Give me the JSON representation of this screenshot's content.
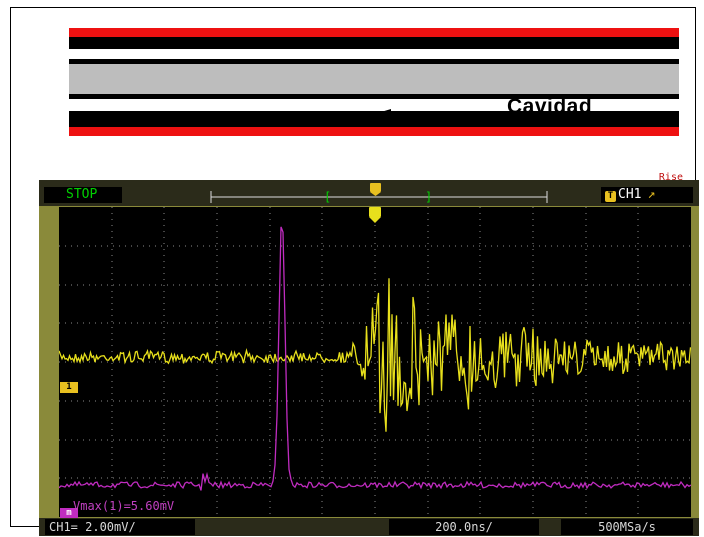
{
  "diagram": {
    "cavity_label": "Cavidad",
    "colors": {
      "red": "#ee1111",
      "black": "#000000",
      "white": "#ffffff",
      "gray": "#bdbdbd"
    }
  },
  "scope": {
    "status": "STOP",
    "trigger": {
      "channel_label": "CH1",
      "rise_label": "Rise",
      "icon": "trigger-t-icon",
      "edge_icon": "rising-edge-icon"
    },
    "ch1_marker": "1",
    "math_marker": "m",
    "measurement": "Vmax(1)=5.60mV",
    "volts_div": "CH1= 2.00mV/",
    "time_div": "200.0ns/",
    "sample_rate": "500MSa/s",
    "colors": {
      "ch1_trace": "#e8e01c",
      "math_trace": "#c02cc0",
      "bezel": "#8a8a3a",
      "screen": "#000000",
      "status_text": "#00d000"
    }
  }
}
